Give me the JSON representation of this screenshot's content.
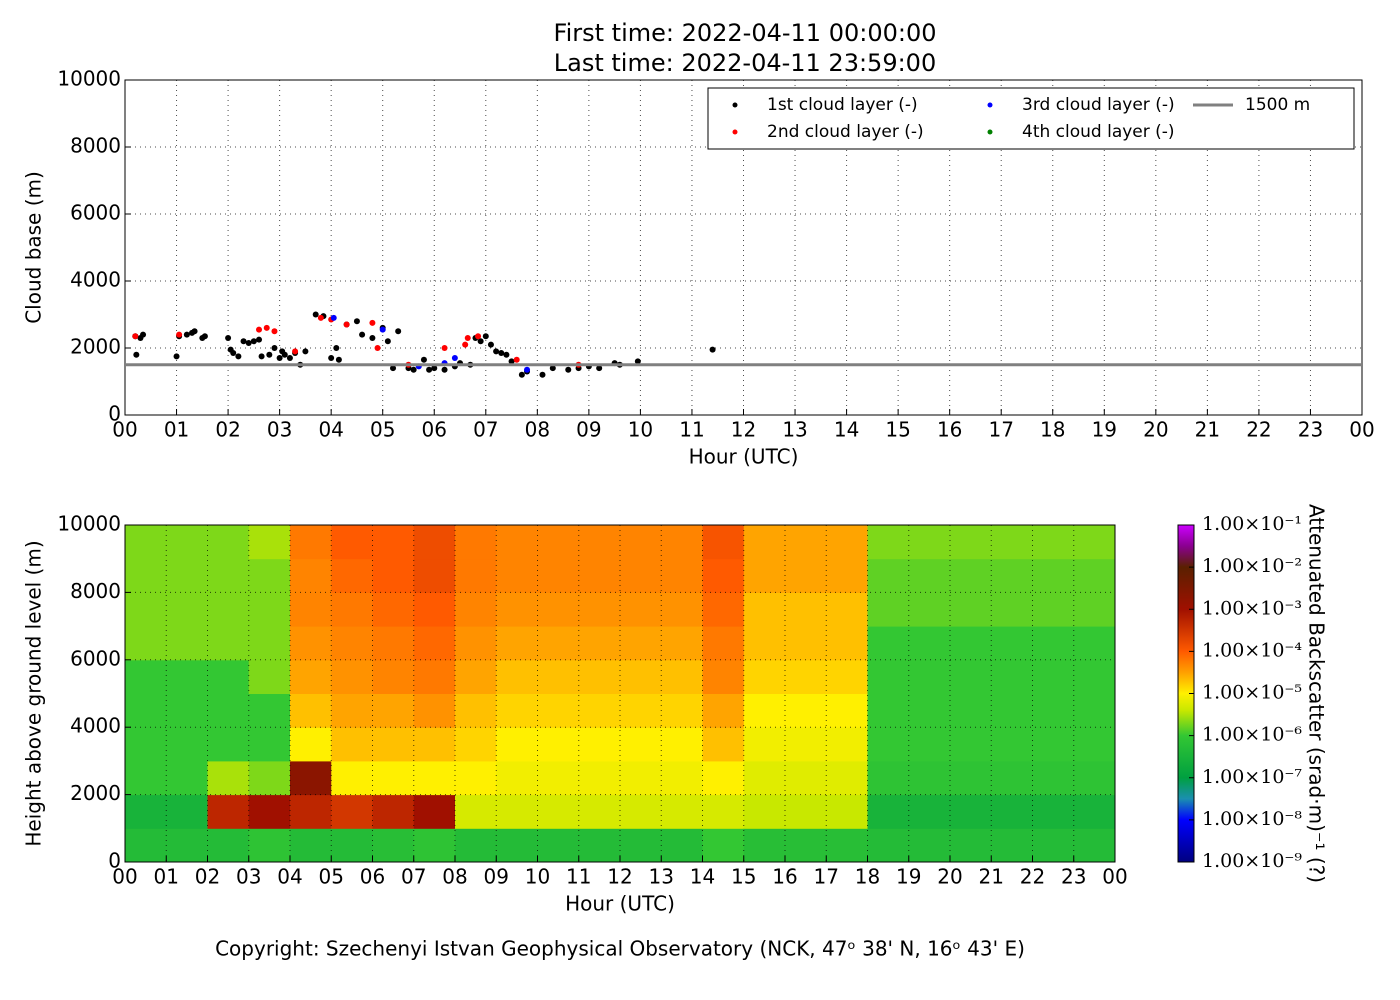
{
  "chart_data": [
    {
      "type": "scatter",
      "title": "First time: 2022-04-11 00:00:00",
      "subtitle": "Last time: 2022-04-11 23:59:00",
      "x_label": "Hour (UTC)",
      "y_label": "Cloud base (m)",
      "xlim": [
        0,
        24
      ],
      "ylim": [
        0,
        10000
      ],
      "xticks": [
        {
          "value": 0,
          "label": "00"
        },
        {
          "value": 1,
          "label": "01"
        },
        {
          "value": 2,
          "label": "02"
        },
        {
          "value": 3,
          "label": "03"
        },
        {
          "value": 4,
          "label": "04"
        },
        {
          "value": 5,
          "label": "05"
        },
        {
          "value": 6,
          "label": "06"
        },
        {
          "value": 7,
          "label": "07"
        },
        {
          "value": 8,
          "label": "08"
        },
        {
          "value": 9,
          "label": "09"
        },
        {
          "value": 10,
          "label": "10"
        },
        {
          "value": 11,
          "label": "11"
        },
        {
          "value": 12,
          "label": "12"
        },
        {
          "value": 13,
          "label": "13"
        },
        {
          "value": 14,
          "label": "14"
        },
        {
          "value": 15,
          "label": "15"
        },
        {
          "value": 16,
          "label": "16"
        },
        {
          "value": 17,
          "label": "17"
        },
        {
          "value": 18,
          "label": "18"
        },
        {
          "value": 19,
          "label": "19"
        },
        {
          "value": 20,
          "label": "20"
        },
        {
          "value": 21,
          "label": "21"
        },
        {
          "value": 22,
          "label": "22"
        },
        {
          "value": 23,
          "label": "23"
        },
        {
          "value": 24,
          "label": "00"
        }
      ],
      "yticks": [
        0,
        2000,
        4000,
        6000,
        8000,
        10000
      ],
      "grid": true,
      "legend_loc": "upper right",
      "series": [
        {
          "name": "1st cloud layer (-)",
          "color": "#000000",
          "x": [
            0.2,
            0.22,
            0.3,
            0.35,
            1.0,
            1.05,
            1.2,
            1.3,
            1.35,
            1.5,
            1.55,
            2.0,
            2.05,
            2.1,
            2.2,
            2.3,
            2.4,
            2.5,
            2.6,
            2.65,
            2.8,
            2.9,
            3.0,
            3.05,
            3.1,
            3.2,
            3.3,
            3.4,
            3.5,
            3.7,
            3.85,
            4.0,
            4.1,
            4.15,
            4.3,
            4.5,
            4.6,
            4.8,
            5.0,
            5.1,
            5.2,
            5.3,
            5.5,
            5.6,
            5.8,
            5.9,
            6.0,
            6.2,
            6.4,
            6.5,
            6.7,
            6.8,
            6.9,
            7.0,
            7.1,
            7.2,
            7.3,
            7.4,
            7.5,
            7.7,
            7.8,
            8.1,
            8.3,
            8.6,
            8.8,
            9.0,
            9.2,
            9.5,
            9.6,
            9.95,
            11.4
          ],
          "values": [
            2350,
            1800,
            2300,
            2400,
            1750,
            2350,
            2400,
            2450,
            2500,
            2300,
            2350,
            2300,
            1950,
            1850,
            1750,
            2200,
            2150,
            2200,
            2250,
            1750,
            1800,
            2000,
            1700,
            1900,
            1800,
            1700,
            1850,
            1500,
            1900,
            3000,
            2950,
            1700,
            2000,
            1650,
            2700,
            2800,
            2400,
            2300,
            2600,
            2200,
            1400,
            2500,
            1400,
            1350,
            1650,
            1350,
            1400,
            1350,
            1450,
            1550,
            1500,
            2300,
            2200,
            2350,
            2100,
            1900,
            1850,
            1800,
            1600,
            1200,
            1300,
            1200,
            1400,
            1350,
            1400,
            1450,
            1400,
            1550,
            1500,
            1600,
            1950
          ]
        },
        {
          "name": "2nd cloud layer (-)",
          "color": "#ff0000",
          "x": [
            0.2,
            1.05,
            2.6,
            2.75,
            2.9,
            3.3,
            3.8,
            4.0,
            4.3,
            4.8,
            4.9,
            5.5,
            6.2,
            6.6,
            6.65,
            6.85,
            7.6,
            8.8
          ],
          "values": [
            2350,
            2400,
            2550,
            2600,
            2500,
            1900,
            2900,
            2850,
            2700,
            2750,
            2000,
            1500,
            2000,
            2100,
            2300,
            2350,
            1650,
            1500
          ]
        },
        {
          "name": "3rd cloud layer (-)",
          "color": "#0000ff",
          "x": [
            4.05,
            5.0,
            5.7,
            6.2,
            6.4,
            7.8
          ],
          "values": [
            2900,
            2550,
            1450,
            1550,
            1700,
            1350
          ]
        },
        {
          "name": "4th cloud layer (-)",
          "color": "#008000",
          "x": [],
          "values": []
        }
      ],
      "reference_line": {
        "name": "1500 m",
        "value": 1500,
        "color": "#808080"
      }
    },
    {
      "type": "heatmap",
      "x_label": "Hour (UTC)",
      "y_label": "Height above ground level (m)",
      "colorbar_label": "Attenuated Backscatter (srad·m)⁻¹ (?)",
      "xlim": [
        0,
        24
      ],
      "ylim": [
        0,
        10000
      ],
      "xticks": [
        {
          "value": 0,
          "label": "00"
        },
        {
          "value": 1,
          "label": "01"
        },
        {
          "value": 2,
          "label": "02"
        },
        {
          "value": 3,
          "label": "03"
        },
        {
          "value": 4,
          "label": "04"
        },
        {
          "value": 5,
          "label": "05"
        },
        {
          "value": 6,
          "label": "06"
        },
        {
          "value": 7,
          "label": "07"
        },
        {
          "value": 8,
          "label": "08"
        },
        {
          "value": 9,
          "label": "09"
        },
        {
          "value": 10,
          "label": "10"
        },
        {
          "value": 11,
          "label": "11"
        },
        {
          "value": 12,
          "label": "12"
        },
        {
          "value": 13,
          "label": "13"
        },
        {
          "value": 14,
          "label": "14"
        },
        {
          "value": 15,
          "label": "15"
        },
        {
          "value": 16,
          "label": "16"
        },
        {
          "value": 17,
          "label": "17"
        },
        {
          "value": 18,
          "label": "18"
        },
        {
          "value": 19,
          "label": "19"
        },
        {
          "value": 20,
          "label": "20"
        },
        {
          "value": 21,
          "label": "21"
        },
        {
          "value": 22,
          "label": "22"
        },
        {
          "value": 23,
          "label": "23"
        },
        {
          "value": 24,
          "label": "00"
        }
      ],
      "yticks": [
        0,
        2000,
        4000,
        6000,
        8000,
        10000
      ],
      "grid": true,
      "log_color": true,
      "clim": [
        1e-09,
        0.1
      ],
      "cticks": [
        {
          "value": 1e-09,
          "label": "1.00×10⁻⁹"
        },
        {
          "value": 1e-08,
          "label": "1.00×10⁻⁸"
        },
        {
          "value": 1e-07,
          "label": "1.00×10⁻⁷"
        },
        {
          "value": 1e-06,
          "label": "1.00×10⁻⁶"
        },
        {
          "value": 1e-05,
          "label": "1.00×10⁻⁵"
        },
        {
          "value": 0.0001,
          "label": "1.00×10⁻⁴"
        },
        {
          "value": 0.001,
          "label": "1.00×10⁻³"
        },
        {
          "value": 0.01,
          "label": "1.00×10⁻²"
        },
        {
          "value": 0.1,
          "label": "1.00×10⁻¹"
        }
      ],
      "x_bins": [
        0,
        1,
        2,
        3,
        4,
        5,
        6,
        7,
        8,
        9,
        10,
        11,
        12,
        13,
        14,
        15,
        16,
        17,
        18,
        19,
        20,
        21,
        22,
        23,
        24
      ],
      "y_bins": [
        0,
        1000,
        2000,
        3000,
        4000,
        5000,
        6000,
        7000,
        8000,
        9000,
        10000
      ],
      "values": [
        [
          5e-07,
          3e-07,
          1e-06,
          1e-06,
          1e-06,
          1e-06,
          2e-06,
          2e-06,
          2e-06,
          2e-06
        ],
        [
          5e-07,
          3e-07,
          1e-06,
          1e-06,
          1e-06,
          1e-06,
          2e-06,
          2e-06,
          2e-06,
          2e-06
        ],
        [
          5e-07,
          0.0005,
          3e-06,
          1e-06,
          1e-06,
          1e-06,
          2e-06,
          2e-06,
          2e-06,
          2e-06
        ],
        [
          8e-07,
          0.001,
          2e-06,
          1e-06,
          1e-06,
          2e-06,
          2e-06,
          2e-06,
          2e-06,
          3e-06
        ],
        [
          5e-07,
          0.0005,
          0.002,
          1e-05,
          2e-05,
          3e-05,
          4e-05,
          5e-05,
          5e-05,
          6e-05
        ],
        [
          5e-07,
          0.0003,
          1e-05,
          2e-05,
          3e-05,
          4e-05,
          5e-05,
          6e-05,
          8e-05,
          0.0001
        ],
        [
          6e-07,
          0.0005,
          1e-05,
          2e-05,
          3e-05,
          5e-05,
          6e-05,
          8e-05,
          0.0001,
          0.0001
        ],
        [
          8e-07,
          0.001,
          1e-05,
          2e-05,
          4e-05,
          6e-05,
          8e-05,
          0.0001,
          0.00015,
          0.00015
        ],
        [
          5e-07,
          5e-06,
          1e-05,
          1.5e-05,
          2e-05,
          3e-05,
          4e-05,
          5e-05,
          6e-05,
          6e-05
        ],
        [
          5e-07,
          5e-06,
          8e-06,
          1e-05,
          1.5e-05,
          2e-05,
          3e-05,
          4e-05,
          5e-05,
          5e-05
        ],
        [
          5e-07,
          5e-06,
          8e-06,
          1e-05,
          1.5e-05,
          2e-05,
          3e-05,
          4e-05,
          5e-05,
          5e-05
        ],
        [
          5e-07,
          5e-06,
          8e-06,
          1e-05,
          1.5e-05,
          2e-05,
          3e-05,
          4e-05,
          5e-05,
          5e-05
        ],
        [
          5e-07,
          5e-06,
          8e-06,
          1e-05,
          1.5e-05,
          2e-05,
          3e-05,
          4e-05,
          5e-05,
          5e-05
        ],
        [
          5e-07,
          5e-06,
          8e-06,
          1e-05,
          1.5e-05,
          2e-05,
          3e-05,
          4e-05,
          5e-05,
          5e-05
        ],
        [
          1e-06,
          5e-06,
          1e-05,
          2e-05,
          3e-05,
          5e-05,
          6e-05,
          8e-05,
          0.0001,
          0.00012
        ],
        [
          6e-07,
          4e-06,
          6e-06,
          8e-06,
          1e-05,
          1.5e-05,
          2e-05,
          2e-05,
          3e-05,
          3e-05
        ],
        [
          6e-07,
          4e-06,
          6e-06,
          8e-06,
          1e-05,
          1.5e-05,
          2e-05,
          2e-05,
          3e-05,
          3e-05
        ],
        [
          6e-07,
          4e-06,
          6e-06,
          8e-06,
          1e-05,
          1.5e-05,
          2e-05,
          2e-05,
          3e-05,
          3e-05
        ],
        [
          5e-07,
          3e-07,
          8e-07,
          1e-06,
          1e-06,
          1e-06,
          1e-06,
          1.5e-06,
          1.5e-06,
          2e-06
        ],
        [
          5e-07,
          3e-07,
          8e-07,
          1e-06,
          1e-06,
          1e-06,
          1e-06,
          1.5e-06,
          1.5e-06,
          2e-06
        ],
        [
          5e-07,
          3e-07,
          8e-07,
          1e-06,
          1e-06,
          1e-06,
          1e-06,
          1.5e-06,
          1.5e-06,
          2e-06
        ],
        [
          5e-07,
          3e-07,
          8e-07,
          1e-06,
          1e-06,
          1e-06,
          1e-06,
          1.5e-06,
          1.5e-06,
          2e-06
        ],
        [
          5e-07,
          3e-07,
          8e-07,
          1e-06,
          1e-06,
          1e-06,
          1e-06,
          1.5e-06,
          1.5e-06,
          2e-06
        ],
        [
          5e-07,
          3e-07,
          8e-07,
          1e-06,
          1e-06,
          1e-06,
          1e-06,
          1.5e-06,
          1.5e-06,
          2e-06
        ]
      ]
    }
  ],
  "footer": "Copyright: Szechenyi Istvan Geophysical Observatory (NCK, 47ᵒ 38' N, 16ᵒ 43' E)"
}
